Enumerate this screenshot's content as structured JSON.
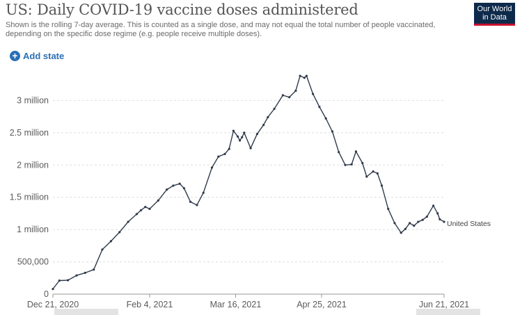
{
  "header": {
    "title": "US: Daily COVID-19 vaccine doses administered",
    "subtitle": "Shown is the rolling 7-day average. This is counted as a single dose, and may not equal the total number of people vaccinated, depending on the specific dose regime (e.g. people receive multiple doses).",
    "logo_line1": "Our World",
    "logo_line2": "in Data"
  },
  "controls": {
    "add_state_label": "Add state",
    "add_icon": "plus-circle-icon"
  },
  "colors": {
    "line": "#2f3a4a",
    "grid": "#dddddd",
    "axis_text": "#5b5b5b",
    "accent": "#2a6fb4",
    "logo_bg": "#0e2a4b",
    "logo_stripe": "#c8102e"
  },
  "chart_data": {
    "type": "line",
    "title": "US: Daily COVID-19 vaccine doses administered",
    "xlabel": "",
    "ylabel": "",
    "y_ticks": [
      0,
      500000,
      1000000,
      1500000,
      2000000,
      2500000,
      3000000
    ],
    "y_tick_labels": [
      "0",
      "500,000",
      "1 million",
      "1.5 million",
      "2 million",
      "2.5 million",
      "3 million"
    ],
    "x_tick_labels": [
      "Dec 21, 2020",
      "Feb 4, 2021",
      "Mar 16, 2021",
      "Apr 25, 2021",
      "Jun 21, 2021"
    ],
    "x_tick_days": [
      0,
      45,
      85,
      125,
      182
    ],
    "ylim": [
      0,
      3500000
    ],
    "xlim_days": [
      0,
      182
    ],
    "grid": true,
    "series": [
      {
        "name": "United States",
        "x_days": [
          0,
          3,
          7,
          11,
          15,
          19,
          23,
          27,
          31,
          35,
          39,
          41,
          43,
          45,
          49,
          53,
          56,
          59,
          61,
          64,
          67,
          70,
          74,
          77,
          80,
          82,
          84,
          86,
          87,
          88,
          89,
          92,
          95,
          98,
          100,
          103,
          107,
          110,
          113,
          115,
          117,
          118,
          121,
          124,
          127,
          130,
          133,
          136,
          139,
          141,
          144,
          146,
          149,
          151,
          153,
          156,
          159,
          162,
          164,
          166,
          168,
          170,
          172,
          174,
          177,
          179,
          180,
          182
        ],
        "values": [
          80000,
          210000,
          215000,
          290000,
          330000,
          380000,
          690000,
          820000,
          960000,
          1120000,
          1240000,
          1300000,
          1350000,
          1320000,
          1450000,
          1620000,
          1680000,
          1710000,
          1640000,
          1430000,
          1380000,
          1570000,
          1960000,
          2130000,
          2170000,
          2250000,
          2530000,
          2440000,
          2380000,
          2430000,
          2500000,
          2260000,
          2480000,
          2620000,
          2740000,
          2870000,
          3080000,
          3050000,
          3150000,
          3380000,
          3350000,
          3380000,
          3100000,
          2900000,
          2720000,
          2520000,
          2200000,
          2000000,
          2010000,
          2210000,
          2030000,
          1820000,
          1900000,
          1870000,
          1680000,
          1320000,
          1100000,
          950000,
          1010000,
          1100000,
          1060000,
          1120000,
          1150000,
          1200000,
          1370000,
          1250000,
          1160000,
          1120000
        ]
      }
    ]
  }
}
